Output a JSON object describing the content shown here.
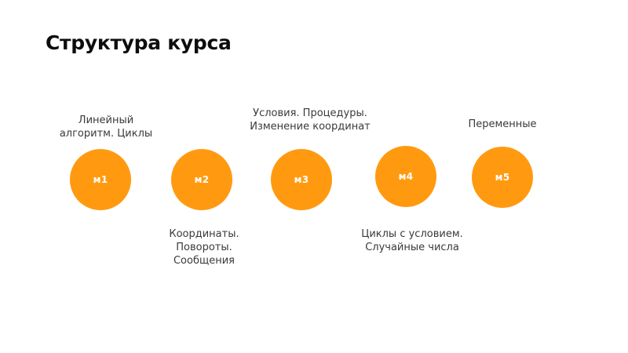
{
  "slide": {
    "title": "Структура курса",
    "accent_color": "#ff9a10",
    "modules": [
      {
        "label": "м1",
        "caption": "Линейный\nалгоритм. Циклы",
        "caption_position": "above"
      },
      {
        "label": "м2",
        "caption": "Координаты.\nПовороты.\nСообщения",
        "caption_position": "below"
      },
      {
        "label": "м3",
        "caption": "Условия. Процедуры.\nИзменение координат",
        "caption_position": "above"
      },
      {
        "label": "м4",
        "caption": "Циклы с условием.\nСлучайные числа",
        "caption_position": "below"
      },
      {
        "label": "м5",
        "caption": "Переменные",
        "caption_position": "above"
      }
    ]
  }
}
